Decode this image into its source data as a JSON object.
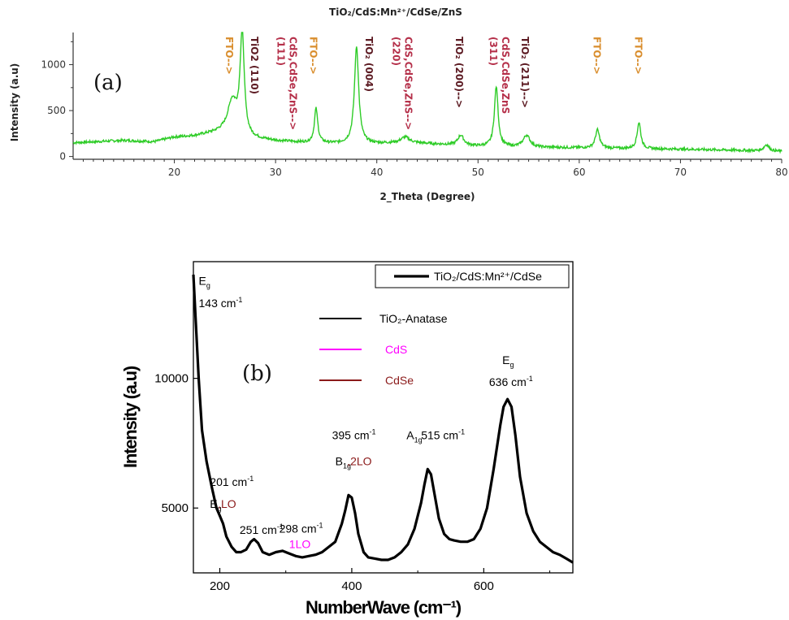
{
  "chart_data": [
    {
      "type": "line",
      "panel_label": "(a)",
      "title": "TiO₂/CdS:Mn²⁺/CdSe/ZnS",
      "xlabel": "2_Theta (Degree)",
      "ylabel": "Intensity (a.u)",
      "xlim": [
        10,
        80
      ],
      "ylim": [
        -30,
        1350
      ],
      "x_ticks": [
        20,
        30,
        40,
        50,
        60,
        70,
        80
      ],
      "y_ticks": [
        0,
        500,
        1000
      ],
      "grid": false,
      "line_color": "#2ecc27",
      "baseline": [
        [
          10,
          150
        ],
        [
          15,
          175
        ],
        [
          18,
          160
        ],
        [
          20,
          210
        ],
        [
          22,
          225
        ],
        [
          24,
          260
        ],
        [
          26,
          300
        ],
        [
          27,
          200
        ],
        [
          30,
          170
        ],
        [
          33,
          150
        ],
        [
          36,
          140
        ],
        [
          40,
          140
        ],
        [
          43,
          150
        ],
        [
          45,
          140
        ],
        [
          50,
          110
        ],
        [
          55,
          100
        ],
        [
          60,
          95
        ],
        [
          65,
          85
        ],
        [
          70,
          80
        ],
        [
          75,
          70
        ],
        [
          80,
          55
        ]
      ],
      "peaks": [
        {
          "x": 25.7,
          "y": 590,
          "w": 0.5
        },
        {
          "x": 26.7,
          "y": 1350,
          "w": 0.25
        },
        {
          "x": 34.0,
          "y": 520,
          "w": 0.2
        },
        {
          "x": 38.0,
          "y": 1200,
          "w": 0.25
        },
        {
          "x": 42.8,
          "y": 210,
          "w": 0.5
        },
        {
          "x": 48.3,
          "y": 230,
          "w": 0.35
        },
        {
          "x": 51.8,
          "y": 760,
          "w": 0.22
        },
        {
          "x": 54.8,
          "y": 230,
          "w": 0.4
        },
        {
          "x": 61.8,
          "y": 290,
          "w": 0.25
        },
        {
          "x": 65.9,
          "y": 370,
          "w": 0.22
        },
        {
          "x": 78.5,
          "y": 130,
          "w": 0.3
        }
      ],
      "annotations": [
        {
          "text": "FTO-->",
          "x": 25.5,
          "color": "#d98d2c"
        },
        {
          "text": "TiO2 (110)",
          "x": 28.0,
          "color": "#5c1a22"
        },
        {
          "text": "CdS,CdSe,ZnS-->",
          "x": 31.8,
          "color": "#b5304a"
        },
        {
          "text": "(111)",
          "x": 30.6,
          "color": "#b5304a"
        },
        {
          "text": "FTO-->",
          "x": 33.8,
          "color": "#d98d2c"
        },
        {
          "text": "TiO₂ (004)",
          "x": 39.3,
          "color": "#5c1a22"
        },
        {
          "text": "CdS,CdSe,ZnS-->",
          "x": 43.2,
          "color": "#b5304a"
        },
        {
          "text": "(220)",
          "x": 42.0,
          "color": "#b5304a"
        },
        {
          "text": "TiO₂ (200)-->",
          "x": 48.2,
          "color": "#5c1a22"
        },
        {
          "text": "CdS,CdSe,ZnS",
          "x": 52.8,
          "color": "#b5304a"
        },
        {
          "text": "(311)",
          "x": 51.6,
          "color": "#b5304a"
        },
        {
          "text": "TiO₂ (211)-->",
          "x": 54.7,
          "color": "#5c1a22"
        },
        {
          "text": "FTO-->",
          "x": 61.8,
          "color": "#d98d2c"
        },
        {
          "text": "FTO-->",
          "x": 65.9,
          "color": "#d98d2c"
        }
      ]
    },
    {
      "type": "line",
      "panel_label": "(b)",
      "xlabel": "NumberWave (cm⁻¹)",
      "ylabel": "Intensity (a.u)",
      "xlim": [
        160,
        735
      ],
      "ylim": [
        2500,
        14500
      ],
      "x_ticks": [
        200,
        400,
        600
      ],
      "y_ticks": [
        5000,
        10000
      ],
      "grid": false,
      "line_color": "#000000",
      "series_name": "TiO₂/CdS:Mn²⁺/CdSe",
      "legend_position": "top-right",
      "points": [
        [
          160,
          14000
        ],
        [
          163,
          12500
        ],
        [
          168,
          10000
        ],
        [
          173,
          8000
        ],
        [
          180,
          6800
        ],
        [
          188,
          5800
        ],
        [
          195,
          5000
        ],
        [
          200,
          4700
        ],
        [
          205,
          4400
        ],
        [
          210,
          3900
        ],
        [
          218,
          3500
        ],
        [
          225,
          3300
        ],
        [
          232,
          3300
        ],
        [
          240,
          3400
        ],
        [
          247,
          3700
        ],
        [
          252,
          3800
        ],
        [
          258,
          3650
        ],
        [
          265,
          3300
        ],
        [
          275,
          3200
        ],
        [
          285,
          3300
        ],
        [
          295,
          3350
        ],
        [
          305,
          3250
        ],
        [
          315,
          3150
        ],
        [
          325,
          3100
        ],
        [
          335,
          3150
        ],
        [
          345,
          3200
        ],
        [
          355,
          3300
        ],
        [
          365,
          3500
        ],
        [
          375,
          3700
        ],
        [
          385,
          4400
        ],
        [
          390,
          4900
        ],
        [
          395,
          5500
        ],
        [
          400,
          5400
        ],
        [
          405,
          4800
        ],
        [
          410,
          4000
        ],
        [
          418,
          3300
        ],
        [
          425,
          3100
        ],
        [
          435,
          3050
        ],
        [
          445,
          3000
        ],
        [
          455,
          3000
        ],
        [
          465,
          3100
        ],
        [
          475,
          3300
        ],
        [
          485,
          3600
        ],
        [
          495,
          4200
        ],
        [
          505,
          5200
        ],
        [
          510,
          5900
        ],
        [
          515,
          6500
        ],
        [
          520,
          6300
        ],
        [
          525,
          5600
        ],
        [
          532,
          4600
        ],
        [
          540,
          4000
        ],
        [
          548,
          3800
        ],
        [
          555,
          3750
        ],
        [
          565,
          3700
        ],
        [
          575,
          3700
        ],
        [
          585,
          3800
        ],
        [
          595,
          4200
        ],
        [
          605,
          5000
        ],
        [
          615,
          6500
        ],
        [
          625,
          8200
        ],
        [
          630,
          8900
        ],
        [
          636,
          9200
        ],
        [
          642,
          8900
        ],
        [
          648,
          7800
        ],
        [
          655,
          6200
        ],
        [
          665,
          4800
        ],
        [
          675,
          4100
        ],
        [
          685,
          3700
        ],
        [
          695,
          3500
        ],
        [
          705,
          3300
        ],
        [
          715,
          3200
        ],
        [
          725,
          3050
        ],
        [
          735,
          2900
        ]
      ],
      "legend_entries": [
        {
          "label": "TiO₂-Anatase",
          "color": "#000000"
        },
        {
          "label": "CdS",
          "color": "#ff00ff"
        },
        {
          "label": "CdSe",
          "color": "#8b1a1a"
        }
      ],
      "annotations": [
        {
          "text": "E",
          "sub": "g",
          "x": 168,
          "y": 13600,
          "color": "#000000"
        },
        {
          "text": "143 cm",
          "sup": "-1",
          "x": 168,
          "y": 12750,
          "color": "#000000"
        },
        {
          "text": "201 cm",
          "sup": "-1",
          "x": 185,
          "y": 5850,
          "color": "#000000"
        },
        {
          "text": "E",
          "sub": "g",
          "x": 185,
          "y": 5000,
          "color": "#000000"
        },
        {
          "text": ",LO",
          "x": 197,
          "y": 5000,
          "color": "#8b1a1a"
        },
        {
          "text": "251 cm",
          "sup": "-1",
          "x": 230,
          "y": 4000,
          "color": "#000000"
        },
        {
          "text": "298 cm",
          "sup": "-1",
          "x": 290,
          "y": 4050,
          "color": "#000000"
        },
        {
          "text": "1LO",
          "x": 305,
          "y": 3450,
          "color": "#ff00ff"
        },
        {
          "text": "395 cm",
          "sup": "-1",
          "x": 370,
          "y": 7650,
          "color": "#000000"
        },
        {
          "text": "B",
          "sub": "1g",
          "x": 375,
          "y": 6650,
          "color": "#000000"
        },
        {
          "text": ",2LO",
          "x": 393,
          "y": 6650,
          "color": "#8b1a1a"
        },
        {
          "text": "A",
          "sub": "1g",
          "x": 483,
          "y": 7650,
          "color": "#000000"
        },
        {
          "text": "515 cm",
          "sup": "-1",
          "x": 505,
          "y": 7650,
          "color": "#000000"
        },
        {
          "text": "E",
          "sub": "g",
          "x": 628,
          "y": 10550,
          "color": "#000000"
        },
        {
          "text": "636 cm",
          "sup": "-1",
          "x": 608,
          "y": 9700,
          "color": "#000000"
        }
      ]
    }
  ]
}
